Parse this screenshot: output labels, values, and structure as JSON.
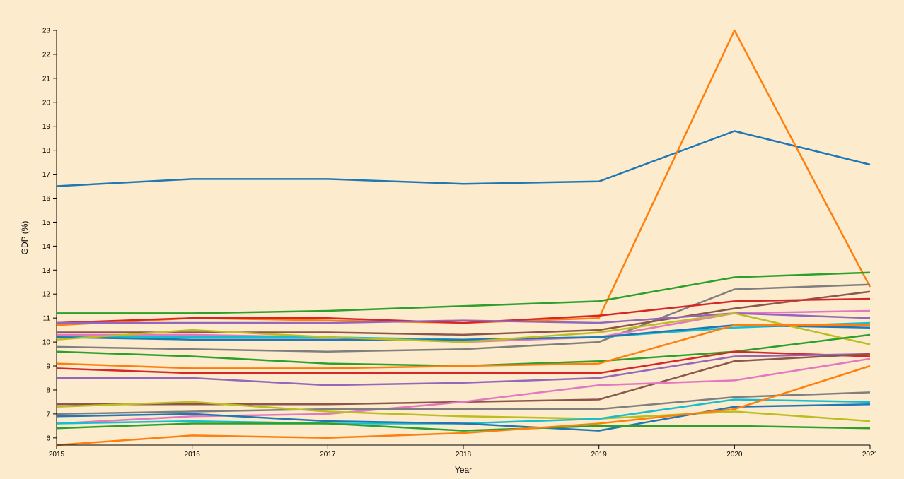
{
  "chart_data": {
    "type": "line",
    "title": "",
    "xlabel": "Year",
    "ylabel": "GDP (%)",
    "x": [
      2015,
      2016,
      2017,
      2018,
      2019,
      2020,
      2021
    ],
    "xlim": [
      2015,
      2021
    ],
    "ylim": [
      5.7,
      23.0
    ],
    "yticks": [
      6,
      7,
      8,
      9,
      10,
      11,
      12,
      13,
      14,
      15,
      16,
      17,
      18,
      19,
      20,
      21,
      22,
      23
    ],
    "grid": false,
    "legend": "none",
    "series": [
      {
        "color": "#1f77b4",
        "values": [
          16.5,
          16.8,
          16.8,
          16.6,
          16.7,
          18.8,
          17.4
        ]
      },
      {
        "color": "#ff7f0e",
        "values": [
          10.7,
          11.0,
          10.9,
          10.8,
          11.0,
          23.0,
          12.3
        ]
      },
      {
        "color": "#2ca02c",
        "values": [
          11.2,
          11.2,
          11.3,
          11.5,
          11.7,
          12.7,
          12.9
        ]
      },
      {
        "color": "#7f7f7f",
        "values": [
          9.8,
          9.7,
          9.6,
          9.7,
          10.0,
          12.2,
          12.4
        ]
      },
      {
        "color": "#8c564b",
        "values": [
          10.4,
          10.4,
          10.4,
          10.3,
          10.5,
          11.4,
          12.1
        ]
      },
      {
        "color": "#d62728",
        "values": [
          10.8,
          11.0,
          11.0,
          10.8,
          11.1,
          11.7,
          11.8
        ]
      },
      {
        "color": "#e377c2",
        "values": [
          10.3,
          10.3,
          10.2,
          10.0,
          10.2,
          11.2,
          11.3
        ]
      },
      {
        "color": "#9467bd",
        "values": [
          10.8,
          10.8,
          10.8,
          10.9,
          10.8,
          11.2,
          11.0
        ]
      },
      {
        "color": "#17becf",
        "values": [
          10.2,
          10.2,
          10.2,
          10.1,
          10.2,
          10.6,
          10.8
        ]
      },
      {
        "color": "#1f77b4",
        "values": [
          10.2,
          10.1,
          10.1,
          10.1,
          10.2,
          10.7,
          10.6
        ]
      },
      {
        "color": "#bcbd22",
        "values": [
          10.1,
          10.5,
          10.2,
          10.0,
          10.4,
          11.2,
          9.9
        ]
      },
      {
        "color": "#2ca02c",
        "values": [
          9.6,
          9.4,
          9.1,
          9.0,
          9.2,
          9.6,
          10.3
        ]
      },
      {
        "color": "#ff7f0e",
        "values": [
          9.1,
          8.9,
          8.9,
          9.0,
          9.1,
          10.7,
          10.7
        ]
      },
      {
        "color": "#d62728",
        "values": [
          8.9,
          8.7,
          8.7,
          8.7,
          8.7,
          9.6,
          9.4
        ]
      },
      {
        "color": "#9467bd",
        "values": [
          8.5,
          8.5,
          8.2,
          8.3,
          8.5,
          9.4,
          9.5
        ]
      },
      {
        "color": "#8c564b",
        "values": [
          7.4,
          7.4,
          7.4,
          7.5,
          7.6,
          9.2,
          9.5
        ]
      },
      {
        "color": "#e377c2",
        "values": [
          6.6,
          6.9,
          7.0,
          7.5,
          8.2,
          8.4,
          9.3
        ]
      },
      {
        "color": "#7f7f7f",
        "values": [
          7.0,
          7.1,
          7.2,
          7.2,
          7.2,
          7.7,
          7.9
        ]
      },
      {
        "color": "#bcbd22",
        "values": [
          7.3,
          7.5,
          7.1,
          6.9,
          6.8,
          7.1,
          6.7
        ]
      },
      {
        "color": "#17becf",
        "values": [
          6.6,
          6.7,
          6.6,
          6.6,
          6.8,
          7.6,
          7.5
        ]
      },
      {
        "color": "#1f77b4",
        "values": [
          6.9,
          7.0,
          6.7,
          6.6,
          6.3,
          7.3,
          7.4
        ]
      },
      {
        "color": "#2ca02c",
        "values": [
          6.4,
          6.6,
          6.6,
          6.3,
          6.5,
          6.5,
          6.4
        ]
      },
      {
        "color": "#ff7f0e",
        "values": [
          5.7,
          6.1,
          6.0,
          6.2,
          6.6,
          7.2,
          9.0
        ]
      }
    ]
  }
}
